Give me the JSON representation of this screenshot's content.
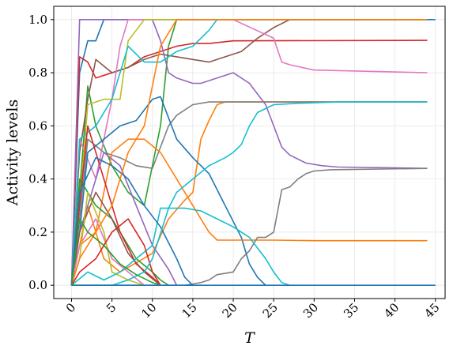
{
  "chart_data": {
    "type": "line",
    "xlabel": "T",
    "ylabel": "Activity levels",
    "xlim": [
      -2.2,
      46.2
    ],
    "ylim": [
      -0.05,
      1.05
    ],
    "x_ticks": [
      0,
      5,
      10,
      15,
      20,
      25,
      30,
      35,
      40,
      45
    ],
    "y_ticks": [
      0.0,
      0.2,
      0.4,
      0.6,
      0.8,
      1.0
    ],
    "x_tick_labels": [
      "0",
      "5",
      "10",
      "15",
      "20",
      "25",
      "30",
      "35",
      "40",
      "45"
    ],
    "y_tick_labels": [
      "0.0",
      "0.2",
      "0.4",
      "0.6",
      "0.8",
      "1.0"
    ],
    "grid": true,
    "legend": "none",
    "series": [
      {
        "color": "#1f77b4",
        "points": [
          [
            0,
            0
          ],
          [
            1,
            0.8
          ],
          [
            2,
            0.92
          ],
          [
            3,
            0.92
          ],
          [
            4,
            1
          ],
          [
            45,
            1
          ]
        ]
      },
      {
        "color": "#ff7f0e",
        "points": [
          [
            0,
            0
          ],
          [
            2,
            0.3
          ],
          [
            4,
            0.1
          ],
          [
            6,
            0.05
          ],
          [
            10,
            0.12
          ],
          [
            12,
            0.25
          ],
          [
            14,
            0.32
          ],
          [
            15,
            0.35
          ],
          [
            16,
            0.55
          ],
          [
            17,
            0.62
          ],
          [
            18,
            0.68
          ],
          [
            19,
            0.69
          ],
          [
            20,
            0.69
          ],
          [
            44,
            0.69
          ]
        ]
      },
      {
        "color": "#2ca02c",
        "points": [
          [
            0,
            0
          ],
          [
            1,
            0.35
          ],
          [
            2,
            0.75
          ],
          [
            3,
            0.6
          ],
          [
            5,
            0.45
          ],
          [
            7,
            0.35
          ],
          [
            9,
            0.3
          ],
          [
            11,
            0.6
          ],
          [
            12,
            0.9
          ],
          [
            13,
            1
          ],
          [
            44,
            1
          ]
        ]
      },
      {
        "color": "#d62728",
        "points": [
          [
            0,
            0
          ],
          [
            1,
            0.86
          ],
          [
            2,
            0.84
          ],
          [
            3,
            0.78
          ],
          [
            5,
            0.8
          ],
          [
            7,
            0.82
          ],
          [
            9,
            0.86
          ],
          [
            11,
            0.88
          ],
          [
            13,
            0.9
          ],
          [
            15,
            0.91
          ],
          [
            17,
            0.91
          ],
          [
            20,
            0.92
          ],
          [
            44,
            0.922
          ]
        ]
      },
      {
        "color": "#9467bd",
        "points": [
          [
            0,
            0
          ],
          [
            1,
            1
          ],
          [
            5,
            1
          ],
          [
            10,
            1
          ],
          [
            11,
            0.92
          ],
          [
            12,
            0.8
          ],
          [
            13,
            0.78
          ],
          [
            15,
            0.76
          ],
          [
            16,
            0.76
          ],
          [
            18,
            0.78
          ],
          [
            20,
            0.8
          ],
          [
            21,
            0.78
          ],
          [
            22,
            0.76
          ],
          [
            23,
            0.72
          ],
          [
            24,
            0.68
          ],
          [
            25,
            0.6
          ],
          [
            26,
            0.52
          ],
          [
            27,
            0.49
          ],
          [
            29,
            0.46
          ],
          [
            31,
            0.45
          ],
          [
            33,
            0.445
          ],
          [
            44,
            0.44
          ]
        ]
      },
      {
        "color": "#8c564b",
        "points": [
          [
            0,
            0
          ],
          [
            1,
            0.5
          ],
          [
            2,
            0.7
          ],
          [
            3,
            0.85
          ],
          [
            5,
            0.8
          ],
          [
            7,
            0.82
          ],
          [
            9,
            0.85
          ],
          [
            11,
            0.87
          ],
          [
            13,
            0.86
          ],
          [
            15,
            0.85
          ],
          [
            17,
            0.84
          ],
          [
            19,
            0.86
          ],
          [
            21,
            0.88
          ],
          [
            23,
            0.93
          ],
          [
            25,
            0.97
          ],
          [
            27,
            1
          ],
          [
            44,
            1
          ]
        ]
      },
      {
        "color": "#e377c2",
        "points": [
          [
            0,
            0
          ],
          [
            1,
            0.55
          ],
          [
            3,
            0.4
          ],
          [
            5,
            0.7
          ],
          [
            6,
            0.9
          ],
          [
            7,
            1
          ],
          [
            12,
            1
          ],
          [
            20,
            1
          ],
          [
            25,
            0.93
          ],
          [
            26,
            0.84
          ],
          [
            27,
            0.83
          ],
          [
            30,
            0.81
          ],
          [
            44,
            0.8
          ]
        ]
      },
      {
        "color": "#7f7f7f",
        "points": [
          [
            0,
            0
          ],
          [
            1,
            0.25
          ],
          [
            2,
            0.55
          ],
          [
            4,
            0.5
          ],
          [
            6,
            0.48
          ],
          [
            8,
            0.45
          ],
          [
            10,
            0.44
          ],
          [
            12,
            0.6
          ],
          [
            13,
            0.64
          ],
          [
            15,
            0.68
          ],
          [
            17,
            0.69
          ],
          [
            44,
            0.69
          ]
        ]
      },
      {
        "color": "#bcbd22",
        "points": [
          [
            0,
            0
          ],
          [
            1,
            0.3
          ],
          [
            2,
            0.68
          ],
          [
            4,
            0.7
          ],
          [
            6,
            0.7
          ],
          [
            7,
            0.92
          ],
          [
            8,
            0.96
          ],
          [
            9,
            1
          ],
          [
            44,
            1
          ]
        ]
      },
      {
        "color": "#17becf",
        "points": [
          [
            0,
            0
          ],
          [
            1,
            0.55
          ],
          [
            3,
            0.6
          ],
          [
            5,
            0.7
          ],
          [
            7,
            0.9
          ],
          [
            9,
            0.84
          ],
          [
            11,
            0.84
          ],
          [
            13,
            0.88
          ],
          [
            15,
            0.9
          ],
          [
            16,
            0.93
          ],
          [
            17,
            0.96
          ],
          [
            18,
            1
          ],
          [
            44,
            1
          ]
        ]
      },
      {
        "color": "#1f77b4",
        "points": [
          [
            0,
            0
          ],
          [
            1,
            0.2
          ],
          [
            2,
            0.5
          ],
          [
            4,
            0.55
          ],
          [
            6,
            0.6
          ],
          [
            8,
            0.62
          ],
          [
            10,
            0.7
          ],
          [
            11,
            0.71
          ],
          [
            13,
            0.55
          ],
          [
            15,
            0.48
          ],
          [
            17,
            0.42
          ],
          [
            19,
            0.3
          ],
          [
            21,
            0.18
          ],
          [
            22,
            0.08
          ],
          [
            23,
            0.03
          ],
          [
            24,
            0
          ]
        ]
      },
      {
        "color": "#ff7f0e",
        "points": [
          [
            0,
            0
          ],
          [
            1,
            0.15
          ],
          [
            3,
            0.2
          ],
          [
            5,
            0.5
          ],
          [
            7,
            0.55
          ],
          [
            9,
            0.55
          ],
          [
            11,
            0.5
          ],
          [
            13,
            0.4
          ],
          [
            15,
            0.3
          ],
          [
            17,
            0.2
          ],
          [
            18,
            0.17
          ],
          [
            20,
            0.17
          ],
          [
            25,
            0.17
          ],
          [
            30,
            0.168
          ],
          [
            44,
            0.168
          ]
        ]
      },
      {
        "color": "#2ca02c",
        "points": [
          [
            0,
            0
          ],
          [
            1,
            0.4
          ],
          [
            3,
            0.3
          ],
          [
            5,
            0.25
          ],
          [
            6,
            0.2
          ],
          [
            8,
            0.1
          ],
          [
            10,
            0.05
          ],
          [
            11,
            0.02
          ],
          [
            12,
            0
          ]
        ]
      },
      {
        "color": "#d62728",
        "points": [
          [
            0,
            0
          ],
          [
            1,
            0.3
          ],
          [
            2,
            0.6
          ],
          [
            4,
            0.4
          ],
          [
            6,
            0.2
          ],
          [
            8,
            0.08
          ],
          [
            10,
            0.03
          ],
          [
            11,
            0
          ]
        ]
      },
      {
        "color": "#9467bd",
        "points": [
          [
            0,
            0
          ],
          [
            1,
            0.2
          ],
          [
            2,
            0.3
          ],
          [
            4,
            0.5
          ],
          [
            6,
            0.45
          ],
          [
            8,
            0.3
          ],
          [
            10,
            0.15
          ],
          [
            12,
            0.06
          ],
          [
            13,
            0
          ]
        ]
      },
      {
        "color": "#8c564b",
        "points": [
          [
            0,
            0
          ],
          [
            1,
            0.2
          ],
          [
            3,
            0.35
          ],
          [
            5,
            0.25
          ],
          [
            7,
            0.12
          ],
          [
            9,
            0.05
          ],
          [
            11,
            0
          ]
        ]
      },
      {
        "color": "#e377c2",
        "points": [
          [
            0,
            0
          ],
          [
            1,
            0.15
          ],
          [
            3,
            0.25
          ],
          [
            5,
            0.1
          ],
          [
            7,
            0.05
          ],
          [
            9,
            0
          ]
        ]
      },
      {
        "color": "#7f7f7f",
        "points": [
          [
            0,
            0
          ],
          [
            14,
            0
          ],
          [
            15,
            0.005
          ],
          [
            16,
            0.01
          ],
          [
            17,
            0.02
          ],
          [
            18,
            0.04
          ],
          [
            20,
            0.05
          ],
          [
            21,
            0.1
          ],
          [
            22,
            0.13
          ],
          [
            23,
            0.18
          ],
          [
            24,
            0.18
          ],
          [
            25,
            0.2
          ],
          [
            26,
            0.36
          ],
          [
            27,
            0.37
          ],
          [
            28,
            0.4
          ],
          [
            29,
            0.42
          ],
          [
            30,
            0.43
          ],
          [
            32,
            0.435
          ],
          [
            44,
            0.44
          ]
        ]
      },
      {
        "color": "#bcbd22",
        "points": [
          [
            0,
            0
          ],
          [
            1,
            0.1
          ],
          [
            2,
            0.35
          ],
          [
            4,
            0.2
          ],
          [
            5,
            0.05
          ],
          [
            7,
            0.02
          ],
          [
            9,
            0
          ]
        ]
      },
      {
        "color": "#17becf",
        "points": [
          [
            0,
            0
          ],
          [
            2,
            0.05
          ],
          [
            4,
            0.02
          ],
          [
            6,
            0.05
          ],
          [
            8,
            0.1
          ],
          [
            10,
            0.15
          ],
          [
            11,
            0.29
          ],
          [
            12,
            0.29
          ],
          [
            13,
            0.35
          ],
          [
            15,
            0.4
          ],
          [
            17,
            0.45
          ],
          [
            19,
            0.48
          ],
          [
            20,
            0.5
          ],
          [
            21,
            0.53
          ],
          [
            22,
            0.6
          ],
          [
            23,
            0.65
          ],
          [
            25,
            0.68
          ],
          [
            28,
            0.685
          ],
          [
            33,
            0.69
          ],
          [
            44,
            0.69
          ]
        ]
      },
      {
        "color": "#1f77b4",
        "points": [
          [
            0,
            0
          ],
          [
            1,
            0.35
          ],
          [
            3,
            0.48
          ],
          [
            5,
            0.45
          ],
          [
            7,
            0.4
          ],
          [
            9,
            0.3
          ],
          [
            11,
            0.22
          ],
          [
            13,
            0.1
          ],
          [
            14,
            0.03
          ],
          [
            15,
            0
          ]
        ]
      },
      {
        "color": "#ff7f0e",
        "points": [
          [
            0,
            0
          ],
          [
            1,
            0.1
          ],
          [
            3,
            0.2
          ],
          [
            5,
            0.3
          ],
          [
            7,
            0.5
          ],
          [
            9,
            0.6
          ],
          [
            11,
            0.9
          ],
          [
            13,
            1
          ],
          [
            44,
            1
          ]
        ]
      },
      {
        "color": "#d62728",
        "points": [
          [
            0,
            0
          ],
          [
            1,
            0.05
          ],
          [
            3,
            0.1
          ],
          [
            5,
            0.2
          ],
          [
            7,
            0.25
          ],
          [
            9,
            0.15
          ],
          [
            10,
            0.05
          ],
          [
            11,
            0
          ]
        ]
      },
      {
        "color": "#17becf",
        "points": [
          [
            0,
            0
          ],
          [
            5,
            0
          ],
          [
            7,
            0.02
          ],
          [
            9,
            0.05
          ],
          [
            10,
            0.1
          ],
          [
            12,
            0.29
          ],
          [
            14,
            0.29
          ],
          [
            16,
            0.28
          ],
          [
            18,
            0.25
          ],
          [
            20,
            0.22
          ],
          [
            22,
            0.18
          ],
          [
            24,
            0.1
          ],
          [
            25,
            0.05
          ],
          [
            26,
            0.01
          ],
          [
            27,
            0
          ]
        ]
      },
      {
        "color": "#2ca02c",
        "points": [
          [
            0,
            0
          ],
          [
            1,
            0.25
          ],
          [
            2,
            0.2
          ],
          [
            4,
            0.15
          ],
          [
            6,
            0.08
          ],
          [
            8,
            0.04
          ],
          [
            10,
            0.01
          ],
          [
            11,
            0
          ]
        ]
      },
      {
        "color": "#1f77b4",
        "points": [
          [
            0,
            0
          ],
          [
            45,
            0
          ]
        ]
      }
    ]
  }
}
